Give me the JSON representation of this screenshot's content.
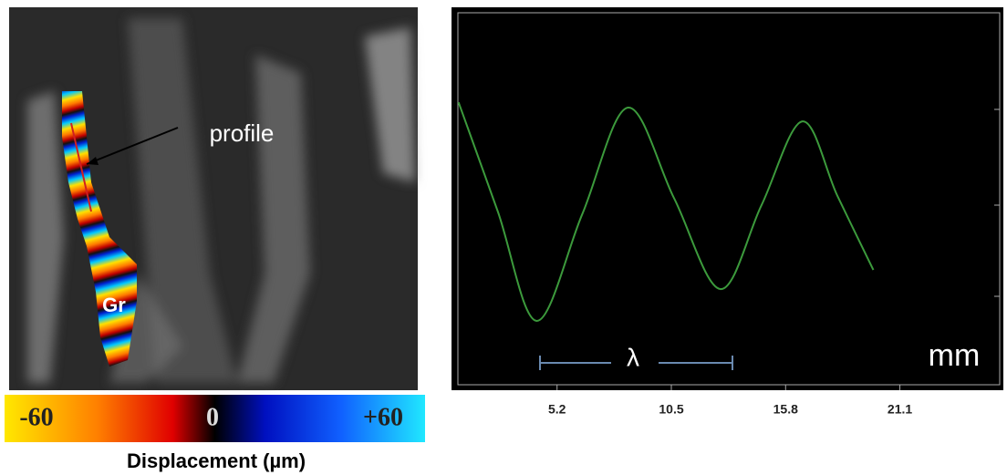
{
  "image_panel": {
    "annotation": "profile",
    "region_label": "Gr",
    "colorbar_labels": [
      "-60",
      "0",
      "+60"
    ],
    "colorbar_title": "Displacement (µm)"
  },
  "chart_data": {
    "type": "line",
    "x_unit": "mm",
    "annotation": "λ",
    "series": [
      {
        "color": "#3c9a3c",
        "x": [
          0.63,
          2.45,
          4.26,
          6.37,
          8.48,
          10.63,
          12.78,
          14.68,
          16.58,
          18.2,
          19.87
        ],
        "values": [
          75.2,
          46.7,
          18.1,
          46,
          73.8,
          50.1,
          26.4,
          48.3,
          70.2,
          50.8,
          31.4
        ]
      }
    ],
    "xlim": [
      0.6,
      25.9
    ],
    "xticks": [
      5.2,
      10.5,
      15.8,
      21.1
    ],
    "ylim": [
      0,
      100
    ]
  }
}
